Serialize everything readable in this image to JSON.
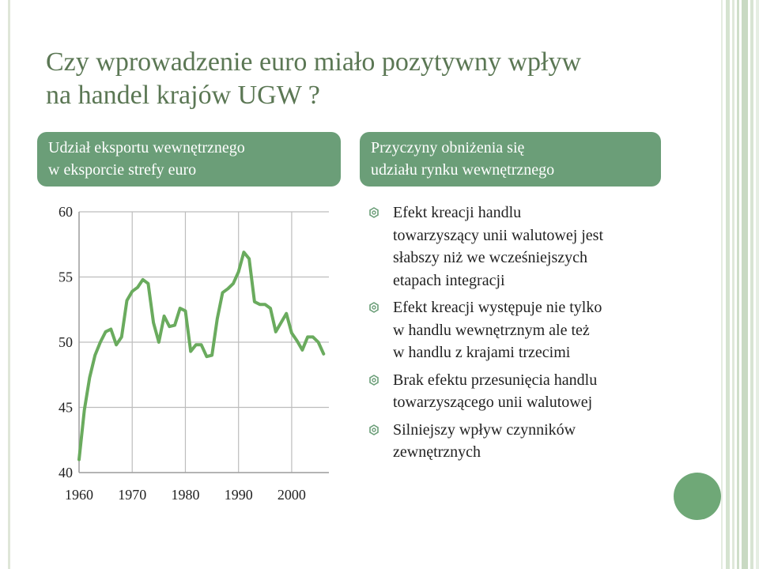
{
  "title": {
    "lines": [
      "Czy wprowadzenie euro miało pozytywny wpływ",
      "na handel krajów UGW ?"
    ]
  },
  "left_box": {
    "lines": [
      "Udział eksportu wewnętrznego",
      "w eksporcie strefy euro"
    ]
  },
  "right_box": {
    "lines": [
      "Przyczyny obniżenia się",
      "udziału rynku wewnętrznego"
    ]
  },
  "bullets": [
    {
      "icon": "bullet-outline-icon",
      "lines": [
        "Efekt kreacji handlu",
        "towarzyszący unii walutowej jest",
        "słabszy niż we wcześniejszych",
        "etapach integracji"
      ]
    },
    {
      "icon": "bullet-outline-icon",
      "lines": [
        "Efekt kreacji występuje nie tylko",
        "w handlu wewnętrznym ale też",
        "w handlu z krajami trzecimi"
      ]
    },
    {
      "icon": "bullet-outline-icon",
      "lines": [
        "Brak efektu przesunięcia handlu",
        "towarzyszącego unii walutowej"
      ]
    },
    {
      "icon": "bullet-outline-icon",
      "lines": [
        "Silniejszy wpływ czynników",
        "zewnętrznych"
      ]
    }
  ],
  "colors": {
    "title": "#5b7754",
    "box": "#6b9e78",
    "line": "#6aab5e",
    "grid": "#bdbdbd",
    "circle": "#6fa877",
    "stripe": "#c9d9c3"
  },
  "chart_data": {
    "type": "line",
    "title": "",
    "xlabel": "",
    "ylabel": "",
    "xlim": [
      1960,
      2007
    ],
    "ylim": [
      40,
      60
    ],
    "xticks": [
      1960,
      1970,
      1980,
      1990,
      2000
    ],
    "yticks": [
      40,
      45,
      50,
      55,
      60
    ],
    "grid": true,
    "series": [
      {
        "x": [
          1960,
          1961,
          1962,
          1963,
          1964,
          1965,
          1966,
          1967,
          1968,
          1969,
          1970,
          1971,
          1972,
          1973,
          1974,
          1975,
          1976,
          1977,
          1978,
          1979,
          1980,
          1981,
          1982,
          1983,
          1984,
          1985,
          1986,
          1987,
          1988,
          1989,
          1990,
          1991,
          1992,
          1993,
          1994,
          1995,
          1996,
          1997,
          1998,
          1999,
          2000,
          2001,
          2002,
          2003,
          2004,
          2005,
          2006
        ],
        "y": [
          41.0,
          44.8,
          47.3,
          49.0,
          50.0,
          50.8,
          51.0,
          49.8,
          50.4,
          53.2,
          53.9,
          54.2,
          54.8,
          54.5,
          51.5,
          50.0,
          52.0,
          51.2,
          51.3,
          52.6,
          52.4,
          49.3,
          49.8,
          49.8,
          48.9,
          49.0,
          51.8,
          53.8,
          54.1,
          54.5,
          55.4,
          56.9,
          56.4,
          53.1,
          52.9,
          52.9,
          52.6,
          50.8,
          51.5,
          52.2,
          50.7,
          50.1,
          49.4,
          50.4,
          50.4,
          50.0,
          49.1
        ]
      }
    ]
  }
}
